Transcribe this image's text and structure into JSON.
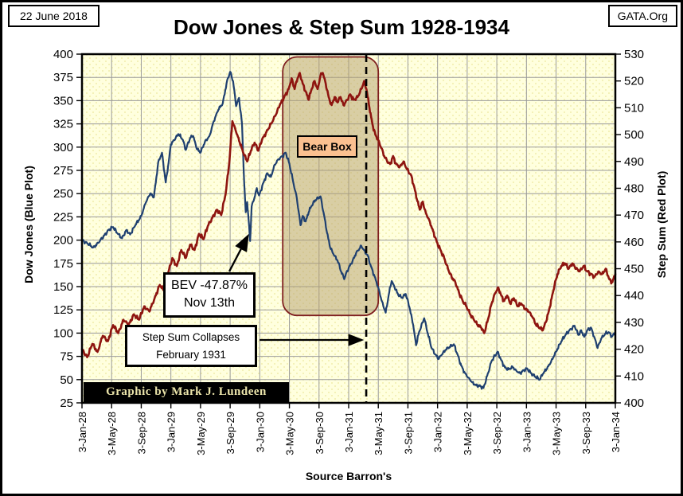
{
  "header": {
    "date": "22 June 2018",
    "brand": "GATA.Org",
    "title": "Dow Jones & Step Sum 1928-1934"
  },
  "annotations": {
    "bear_box_label": "Bear Box",
    "bev_line1": "BEV -47.87%",
    "bev_line2": "Nov 13th",
    "stepsum_line1": "Step Sum Collapses",
    "stepsum_line2": "February 1931",
    "credit": "Graphic by Mark J. Lundeen",
    "dashed_line_month": 38.37,
    "bear_box": {
      "month_start": 27.1,
      "month_end": 40.0,
      "top_value": 397,
      "bottom_value": 119
    }
  },
  "colors": {
    "blue": "#1f4070",
    "red": "#8e1510",
    "plot_bg": "#ffffde",
    "plot_dot": "#ede79d",
    "grid": "#9a9a9a",
    "border": "#000000",
    "bear_box_fill": "rgba(183,162,112,0.52)",
    "bear_box_border": "#7f1f1f",
    "bear_label_bg": "#fac090",
    "credit_bg": "#000000",
    "credit_fg": "#ece5ab"
  },
  "chart_data": {
    "type": "line",
    "title": "Dow Jones & Step Sum 1928-1934",
    "x_axis_label": "Source Barron's",
    "grid": true,
    "x_months_range": [
      0,
      72
    ],
    "x_tick_labels": [
      "3-Jan-28",
      "3-May-28",
      "3-Sep-28",
      "3-Jan-29",
      "3-May-29",
      "3-Sep-29",
      "3-Jan-30",
      "3-May-30",
      "3-Sep-30",
      "3-Jan-31",
      "3-May-31",
      "3-Sep-31",
      "3-Jan-32",
      "3-May-32",
      "3-Sep-32",
      "3-Jan-33",
      "3-May-33",
      "3-Sep-33",
      "3-Jan-34"
    ],
    "left_axis": {
      "label": "Dow Jones (Blue Plot)",
      "min": 25,
      "max": 400,
      "step": 25,
      "ticks": [
        400,
        375,
        350,
        325,
        300,
        275,
        250,
        225,
        200,
        175,
        150,
        125,
        100,
        75,
        50,
        25
      ]
    },
    "right_axis": {
      "label": "Step Sum (Red Plot)",
      "min": 400,
      "max": 530,
      "step": 10,
      "ticks": [
        530,
        520,
        510,
        500,
        490,
        480,
        470,
        460,
        450,
        440,
        430,
        420,
        410,
        400
      ]
    },
    "series": [
      {
        "name": "Dow Jones",
        "axis": "left",
        "color": "#1f4070",
        "points": [
          [
            0,
            200
          ],
          [
            0.8,
            196
          ],
          [
            1.5,
            192
          ],
          [
            2.2,
            197
          ],
          [
            3,
            205
          ],
          [
            3.6,
            211
          ],
          [
            4.2,
            214
          ],
          [
            4.8,
            207
          ],
          [
            5.4,
            202
          ],
          [
            6,
            211
          ],
          [
            6.5,
            206
          ],
          [
            7.2,
            216
          ],
          [
            8,
            226
          ],
          [
            8.6,
            240
          ],
          [
            9.2,
            250
          ],
          [
            9.7,
            246
          ],
          [
            10.3,
            284
          ],
          [
            10.8,
            294
          ],
          [
            11.3,
            262
          ],
          [
            11.7,
            284
          ],
          [
            12,
            303
          ],
          [
            12.6,
            309
          ],
          [
            13,
            314
          ],
          [
            13.6,
            308
          ],
          [
            14,
            297
          ],
          [
            14.6,
            310
          ],
          [
            15,
            312
          ],
          [
            15.5,
            298
          ],
          [
            16,
            294
          ],
          [
            16.6,
            306
          ],
          [
            17.2,
            312
          ],
          [
            17.8,
            328
          ],
          [
            18.4,
            340
          ],
          [
            19,
            347
          ],
          [
            19.6,
            372
          ],
          [
            20,
            381
          ],
          [
            20.4,
            371
          ],
          [
            20.8,
            344
          ],
          [
            21.2,
            353
          ],
          [
            21.6,
            325
          ],
          [
            21.9,
            261
          ],
          [
            22.1,
            230
          ],
          [
            22.3,
            241
          ],
          [
            22.5,
            221
          ],
          [
            22.7,
            199
          ],
          [
            22.9,
            236
          ],
          [
            23.2,
            243
          ],
          [
            23.6,
            256
          ],
          [
            23.9,
            248
          ],
          [
            24,
            250
          ],
          [
            24.5,
            262
          ],
          [
            25,
            272
          ],
          [
            25.5,
            268
          ],
          [
            26,
            281
          ],
          [
            26.5,
            287
          ],
          [
            27,
            290
          ],
          [
            27.5,
            294
          ],
          [
            28,
            282
          ],
          [
            28.5,
            263
          ],
          [
            29,
            245
          ],
          [
            29.5,
            216
          ],
          [
            29.8,
            226
          ],
          [
            30.2,
            220
          ],
          [
            30.6,
            230
          ],
          [
            31,
            237
          ],
          [
            31.5,
            243
          ],
          [
            32.2,
            247
          ],
          [
            32.7,
            226
          ],
          [
            33,
            211
          ],
          [
            33.5,
            192
          ],
          [
            34,
            184
          ],
          [
            34.5,
            178
          ],
          [
            35,
            166
          ],
          [
            35.4,
            158
          ],
          [
            35.8,
            167
          ],
          [
            36,
            170
          ],
          [
            36.5,
            177
          ],
          [
            37,
            186
          ],
          [
            37.7,
            194
          ],
          [
            38.1,
            189
          ],
          [
            38.6,
            183
          ],
          [
            39,
            172
          ],
          [
            39.5,
            161
          ],
          [
            40,
            149
          ],
          [
            40.5,
            134
          ],
          [
            41,
            122
          ],
          [
            41.4,
            141
          ],
          [
            41.8,
            156
          ],
          [
            42.2,
            149
          ],
          [
            42.7,
            141
          ],
          [
            43.2,
            138
          ],
          [
            43.7,
            142
          ],
          [
            44.2,
            128
          ],
          [
            44.7,
            109
          ],
          [
            45.1,
            87
          ],
          [
            45.5,
            101
          ],
          [
            46.2,
            116
          ],
          [
            46.7,
            99
          ],
          [
            47.2,
            84
          ],
          [
            47.7,
            77
          ],
          [
            48.1,
            72
          ],
          [
            48.6,
            77
          ],
          [
            49.1,
            82
          ],
          [
            49.6,
            85
          ],
          [
            50.2,
            88
          ],
          [
            50.7,
            77
          ],
          [
            51.2,
            65
          ],
          [
            51.7,
            57
          ],
          [
            52.2,
            52
          ],
          [
            52.7,
            47
          ],
          [
            53.2,
            44
          ],
          [
            53.8,
            43
          ],
          [
            54.2,
            41
          ],
          [
            54.7,
            54
          ],
          [
            55.3,
            70
          ],
          [
            56.1,
            80
          ],
          [
            56.6,
            71
          ],
          [
            57.1,
            63
          ],
          [
            57.6,
            61
          ],
          [
            58.1,
            64
          ],
          [
            58.6,
            60
          ],
          [
            59.1,
            57
          ],
          [
            59.6,
            60
          ],
          [
            60.1,
            62
          ],
          [
            60.6,
            57
          ],
          [
            61.2,
            53
          ],
          [
            61.8,
            50
          ],
          [
            62.2,
            56
          ],
          [
            62.7,
            61
          ],
          [
            63.2,
            67
          ],
          [
            63.7,
            75
          ],
          [
            64.2,
            83
          ],
          [
            64.7,
            91
          ],
          [
            65.2,
            97
          ],
          [
            65.8,
            103
          ],
          [
            66.5,
            108
          ],
          [
            67,
            98
          ],
          [
            67.4,
            103
          ],
          [
            67.8,
            96
          ],
          [
            68.2,
            103
          ],
          [
            68.7,
            106
          ],
          [
            69.2,
            95
          ],
          [
            69.6,
            84
          ],
          [
            70.1,
            94
          ],
          [
            70.6,
            99
          ],
          [
            71.1,
            101
          ],
          [
            71.5,
            96
          ],
          [
            72,
            100
          ]
        ]
      },
      {
        "name": "Step Sum",
        "axis": "right",
        "color": "#8e1510",
        "points": [
          [
            0,
            420
          ],
          [
            0.7,
            417
          ],
          [
            1.4,
            422
          ],
          [
            2.1,
            419
          ],
          [
            2.8,
            425
          ],
          [
            3.5,
            423
          ],
          [
            4.2,
            429
          ],
          [
            4.9,
            426
          ],
          [
            5.6,
            431
          ],
          [
            6.3,
            429
          ],
          [
            7,
            433
          ],
          [
            7.7,
            431
          ],
          [
            8.4,
            436
          ],
          [
            9.1,
            434
          ],
          [
            9.8,
            439
          ],
          [
            10.5,
            444
          ],
          [
            11,
            442
          ],
          [
            11.6,
            448
          ],
          [
            12.2,
            454
          ],
          [
            12.8,
            451
          ],
          [
            13.4,
            457
          ],
          [
            14,
            454
          ],
          [
            14.6,
            459
          ],
          [
            15.2,
            457
          ],
          [
            15.8,
            463
          ],
          [
            16.4,
            461
          ],
          [
            17,
            466
          ],
          [
            17.6,
            469
          ],
          [
            18.2,
            472
          ],
          [
            18.8,
            470
          ],
          [
            19.4,
            478
          ],
          [
            19.9,
            490
          ],
          [
            20.3,
            505
          ],
          [
            20.8,
            501
          ],
          [
            21.3,
            497
          ],
          [
            21.8,
            493
          ],
          [
            22.3,
            490
          ],
          [
            22.8,
            494
          ],
          [
            23.3,
            497
          ],
          [
            23.8,
            494
          ],
          [
            24.3,
            498
          ],
          [
            24.9,
            501
          ],
          [
            25.5,
            504
          ],
          [
            26.1,
            507
          ],
          [
            26.7,
            511
          ],
          [
            27.3,
            514
          ],
          [
            27.9,
            517
          ],
          [
            28.3,
            521
          ],
          [
            28.7,
            517
          ],
          [
            29.1,
            521
          ],
          [
            29.4,
            523
          ],
          [
            29.8,
            519
          ],
          [
            30.2,
            516
          ],
          [
            30.6,
            513
          ],
          [
            31,
            517
          ],
          [
            31.4,
            520
          ],
          [
            31.8,
            517
          ],
          [
            32.2,
            522
          ],
          [
            32.5,
            523
          ],
          [
            32.9,
            519
          ],
          [
            33.3,
            514
          ],
          [
            33.7,
            511
          ],
          [
            34.1,
            514
          ],
          [
            34.5,
            512
          ],
          [
            34.9,
            514
          ],
          [
            35.3,
            511
          ],
          [
            35.8,
            513
          ],
          [
            36.2,
            515
          ],
          [
            36.7,
            513
          ],
          [
            37.2,
            514
          ],
          [
            37.7,
            517
          ],
          [
            38.1,
            520
          ],
          [
            38.4,
            517
          ],
          [
            38.8,
            510
          ],
          [
            39.2,
            504
          ],
          [
            39.6,
            500
          ],
          [
            40,
            498
          ],
          [
            40.4,
            495
          ],
          [
            40.8,
            492
          ],
          [
            41.2,
            490
          ],
          [
            41.6,
            489
          ],
          [
            42,
            492
          ],
          [
            42.4,
            489
          ],
          [
            42.9,
            488
          ],
          [
            43.4,
            490
          ],
          [
            43.9,
            487
          ],
          [
            44.4,
            485
          ],
          [
            44.8,
            481
          ],
          [
            45.2,
            476
          ],
          [
            45.6,
            472
          ],
          [
            46,
            475
          ],
          [
            46.4,
            471
          ],
          [
            46.9,
            468
          ],
          [
            47.4,
            464
          ],
          [
            47.9,
            460
          ],
          [
            48.4,
            457
          ],
          [
            48.9,
            454
          ],
          [
            49.4,
            450
          ],
          [
            49.9,
            447
          ],
          [
            50.4,
            445
          ],
          [
            50.9,
            441
          ],
          [
            51.4,
            438
          ],
          [
            51.9,
            436
          ],
          [
            52.4,
            433
          ],
          [
            52.9,
            431
          ],
          [
            53.4,
            429
          ],
          [
            53.9,
            428
          ],
          [
            54.3,
            426
          ],
          [
            54.8,
            431
          ],
          [
            55.3,
            437
          ],
          [
            55.8,
            441
          ],
          [
            56.2,
            443
          ],
          [
            56.6,
            440
          ],
          [
            57,
            438
          ],
          [
            57.4,
            440
          ],
          [
            57.8,
            437
          ],
          [
            58.3,
            439
          ],
          [
            58.8,
            436
          ],
          [
            59.3,
            437
          ],
          [
            59.8,
            435
          ],
          [
            60.3,
            434
          ],
          [
            60.8,
            432
          ],
          [
            61.3,
            429
          ],
          [
            61.8,
            428
          ],
          [
            62.2,
            427
          ],
          [
            62.6,
            430
          ],
          [
            63,
            434
          ],
          [
            63.4,
            439
          ],
          [
            63.8,
            444
          ],
          [
            64.2,
            448
          ],
          [
            64.7,
            451
          ],
          [
            65.2,
            452
          ],
          [
            65.7,
            450
          ],
          [
            66.2,
            452
          ],
          [
            66.7,
            450
          ],
          [
            67.2,
            449
          ],
          [
            67.7,
            451
          ],
          [
            68.2,
            449
          ],
          [
            68.7,
            448
          ],
          [
            69.2,
            447
          ],
          [
            69.7,
            449
          ],
          [
            70.2,
            448
          ],
          [
            70.7,
            450
          ],
          [
            71.2,
            446
          ],
          [
            71.6,
            445
          ],
          [
            72,
            448
          ]
        ]
      }
    ]
  }
}
